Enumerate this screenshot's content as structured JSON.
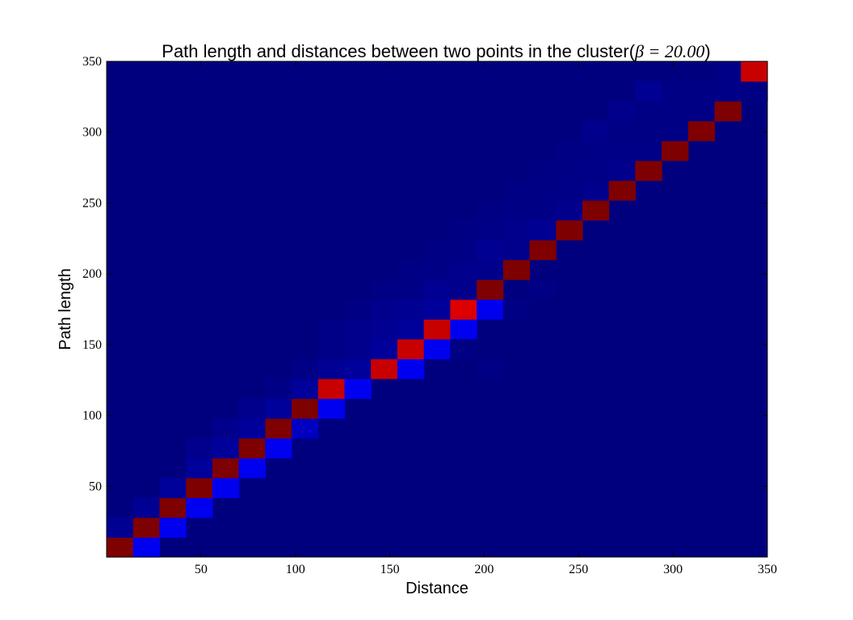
{
  "chart_data": {
    "type": "heatmap",
    "title": "Path length and distances between two points in the cluster(β = 20.00)",
    "title_prefix": "Path length and distances between two points in the cluster(",
    "title_math": "β = 20.00",
    "title_suffix": ")",
    "xlabel": "Distance",
    "ylabel": "Path length",
    "xlim": [
      0,
      350
    ],
    "ylim": [
      0,
      350
    ],
    "xticks": [
      50,
      100,
      150,
      200,
      250,
      300,
      350
    ],
    "yticks": [
      50,
      100,
      150,
      200,
      250,
      300,
      350
    ],
    "bin_size": 14,
    "n_bins": 25,
    "colormap": "jet",
    "background_color": "#00007f",
    "palette": {
      "diag_dark": "#7f0000",
      "diag_red": "#c80000",
      "diag_bright": "#dc0000",
      "adj_bright": "#0000f0",
      "adj_mid": "#0000c0",
      "adj_dim": "#00009a",
      "band_1": "#000093",
      "band_2": "#00008c",
      "band_3": "#000087",
      "band_4": "#000084"
    },
    "cells": [
      {
        "col": 0,
        "row": 0,
        "color": "diag_dark"
      },
      {
        "col": 1,
        "row": 0,
        "color": "adj_bright"
      },
      {
        "col": 0,
        "row": 1,
        "color": "band_1"
      },
      {
        "col": 1,
        "row": 1,
        "color": "diag_dark"
      },
      {
        "col": 2,
        "row": 1,
        "color": "adj_bright"
      },
      {
        "col": 1,
        "row": 2,
        "color": "band_1"
      },
      {
        "col": 2,
        "row": 2,
        "color": "diag_dark"
      },
      {
        "col": 3,
        "row": 2,
        "color": "adj_bright"
      },
      {
        "col": 2,
        "row": 3,
        "color": "adj_dim"
      },
      {
        "col": 3,
        "row": 3,
        "color": "diag_dark"
      },
      {
        "col": 4,
        "row": 3,
        "color": "adj_bright"
      },
      {
        "col": 3,
        "row": 4,
        "color": "adj_dim"
      },
      {
        "col": 4,
        "row": 4,
        "color": "diag_dark"
      },
      {
        "col": 5,
        "row": 4,
        "color": "adj_bright"
      },
      {
        "col": 3,
        "row": 5,
        "color": "band_2"
      },
      {
        "col": 4,
        "row": 5,
        "color": "adj_dim"
      },
      {
        "col": 5,
        "row": 5,
        "color": "diag_dark"
      },
      {
        "col": 6,
        "row": 5,
        "color": "adj_bright"
      },
      {
        "col": 4,
        "row": 6,
        "color": "band_2"
      },
      {
        "col": 5,
        "row": 6,
        "color": "adj_dim"
      },
      {
        "col": 6,
        "row": 6,
        "color": "diag_dark"
      },
      {
        "col": 7,
        "row": 6,
        "color": "adj_mid"
      },
      {
        "col": 5,
        "row": 7,
        "color": "band_2"
      },
      {
        "col": 6,
        "row": 7,
        "color": "adj_dim"
      },
      {
        "col": 7,
        "row": 7,
        "color": "diag_dark"
      },
      {
        "col": 8,
        "row": 7,
        "color": "adj_bright"
      },
      {
        "col": 6,
        "row": 8,
        "color": "band_3"
      },
      {
        "col": 7,
        "row": 8,
        "color": "adj_dim"
      },
      {
        "col": 8,
        "row": 8,
        "color": "diag_red"
      },
      {
        "col": 9,
        "row": 8,
        "color": "adj_bright"
      },
      {
        "col": 7,
        "row": 9,
        "color": "band_3"
      },
      {
        "col": 8,
        "row": 9,
        "color": "band_1"
      },
      {
        "col": 9,
        "row": 9,
        "color": "adj_dim"
      },
      {
        "col": 10,
        "row": 9,
        "color": "diag_red"
      },
      {
        "col": 11,
        "row": 9,
        "color": "adj_bright"
      },
      {
        "col": 8,
        "row": 10,
        "color": "band_3"
      },
      {
        "col": 9,
        "row": 10,
        "color": "band_2"
      },
      {
        "col": 10,
        "row": 10,
        "color": "adj_dim"
      },
      {
        "col": 11,
        "row": 10,
        "color": "diag_red"
      },
      {
        "col": 12,
        "row": 10,
        "color": "adj_bright"
      },
      {
        "col": 8,
        "row": 11,
        "color": "band_3"
      },
      {
        "col": 9,
        "row": 11,
        "color": "band_2"
      },
      {
        "col": 10,
        "row": 11,
        "color": "band_1"
      },
      {
        "col": 11,
        "row": 11,
        "color": "adj_dim"
      },
      {
        "col": 12,
        "row": 11,
        "color": "diag_red"
      },
      {
        "col": 13,
        "row": 11,
        "color": "adj_bright"
      },
      {
        "col": 9,
        "row": 12,
        "color": "band_4"
      },
      {
        "col": 10,
        "row": 12,
        "color": "band_2"
      },
      {
        "col": 11,
        "row": 12,
        "color": "band_1"
      },
      {
        "col": 12,
        "row": 12,
        "color": "adj_dim"
      },
      {
        "col": 13,
        "row": 12,
        "color": "diag_bright"
      },
      {
        "col": 14,
        "row": 12,
        "color": "adj_bright"
      },
      {
        "col": 10,
        "row": 13,
        "color": "band_4"
      },
      {
        "col": 11,
        "row": 13,
        "color": "band_3"
      },
      {
        "col": 12,
        "row": 13,
        "color": "band_1"
      },
      {
        "col": 13,
        "row": 13,
        "color": "band_2"
      },
      {
        "col": 14,
        "row": 13,
        "color": "diag_dark"
      },
      {
        "col": 11,
        "row": 14,
        "color": "band_4"
      },
      {
        "col": 12,
        "row": 14,
        "color": "band_3"
      },
      {
        "col": 13,
        "row": 14,
        "color": "band_2"
      },
      {
        "col": 14,
        "row": 14,
        "color": "band_2"
      },
      {
        "col": 15,
        "row": 14,
        "color": "diag_dark"
      },
      {
        "col": 12,
        "row": 15,
        "color": "band_4"
      },
      {
        "col": 13,
        "row": 15,
        "color": "band_3"
      },
      {
        "col": 14,
        "row": 15,
        "color": "band_1"
      },
      {
        "col": 15,
        "row": 15,
        "color": "band_2"
      },
      {
        "col": 16,
        "row": 15,
        "color": "diag_dark"
      },
      {
        "col": 13,
        "row": 16,
        "color": "band_4"
      },
      {
        "col": 14,
        "row": 16,
        "color": "band_3"
      },
      {
        "col": 15,
        "row": 16,
        "color": "band_2"
      },
      {
        "col": 16,
        "row": 16,
        "color": "band_1"
      },
      {
        "col": 17,
        "row": 16,
        "color": "diag_dark"
      },
      {
        "col": 14,
        "row": 17,
        "color": "band_4"
      },
      {
        "col": 15,
        "row": 17,
        "color": "band_3"
      },
      {
        "col": 16,
        "row": 17,
        "color": "band_3"
      },
      {
        "col": 17,
        "row": 17,
        "color": "band_2"
      },
      {
        "col": 18,
        "row": 17,
        "color": "diag_dark"
      },
      {
        "col": 15,
        "row": 18,
        "color": "band_4"
      },
      {
        "col": 16,
        "row": 18,
        "color": "band_3"
      },
      {
        "col": 17,
        "row": 18,
        "color": "band_3"
      },
      {
        "col": 18,
        "row": 18,
        "color": "band_2"
      },
      {
        "col": 19,
        "row": 18,
        "color": "diag_dark"
      },
      {
        "col": 16,
        "row": 19,
        "color": "band_4"
      },
      {
        "col": 17,
        "row": 19,
        "color": "band_3"
      },
      {
        "col": 18,
        "row": 19,
        "color": "band_3"
      },
      {
        "col": 19,
        "row": 19,
        "color": "band_2"
      },
      {
        "col": 20,
        "row": 19,
        "color": "diag_dark"
      },
      {
        "col": 17,
        "row": 20,
        "color": "band_4"
      },
      {
        "col": 18,
        "row": 20,
        "color": "band_3"
      },
      {
        "col": 19,
        "row": 20,
        "color": "band_3"
      },
      {
        "col": 20,
        "row": 20,
        "color": "band_3"
      },
      {
        "col": 21,
        "row": 20,
        "color": "diag_dark"
      },
      {
        "col": 18,
        "row": 21,
        "color": "band_2"
      },
      {
        "col": 19,
        "row": 21,
        "color": "band_4"
      },
      {
        "col": 20,
        "row": 21,
        "color": "band_4"
      },
      {
        "col": 21,
        "row": 21,
        "color": "band_3"
      },
      {
        "col": 22,
        "row": 21,
        "color": "diag_dark"
      },
      {
        "col": 19,
        "row": 22,
        "color": "band_2"
      },
      {
        "col": 20,
        "row": 22,
        "color": "band_4"
      },
      {
        "col": 21,
        "row": 22,
        "color": "band_4"
      },
      {
        "col": 22,
        "row": 22,
        "color": "band_4"
      },
      {
        "col": 23,
        "row": 22,
        "color": "diag_dark"
      },
      {
        "col": 20,
        "row": 23,
        "color": "band_1"
      },
      {
        "col": 21,
        "row": 23,
        "color": "band_3"
      },
      {
        "col": 22,
        "row": 23,
        "color": "band_3"
      },
      {
        "col": 23,
        "row": 23,
        "color": "band_3"
      },
      {
        "col": 24,
        "row": 23,
        "color": "band_4"
      },
      {
        "col": 23,
        "row": 24,
        "color": "band_3"
      },
      {
        "col": 24,
        "row": 24,
        "color": "diag_red"
      },
      {
        "col": 14,
        "row": 9,
        "color": "band_4"
      },
      {
        "col": 13,
        "row": 10,
        "color": "band_4"
      },
      {
        "col": 15,
        "row": 12,
        "color": "band_4"
      },
      {
        "col": 16,
        "row": 13,
        "color": "band_4"
      }
    ]
  }
}
